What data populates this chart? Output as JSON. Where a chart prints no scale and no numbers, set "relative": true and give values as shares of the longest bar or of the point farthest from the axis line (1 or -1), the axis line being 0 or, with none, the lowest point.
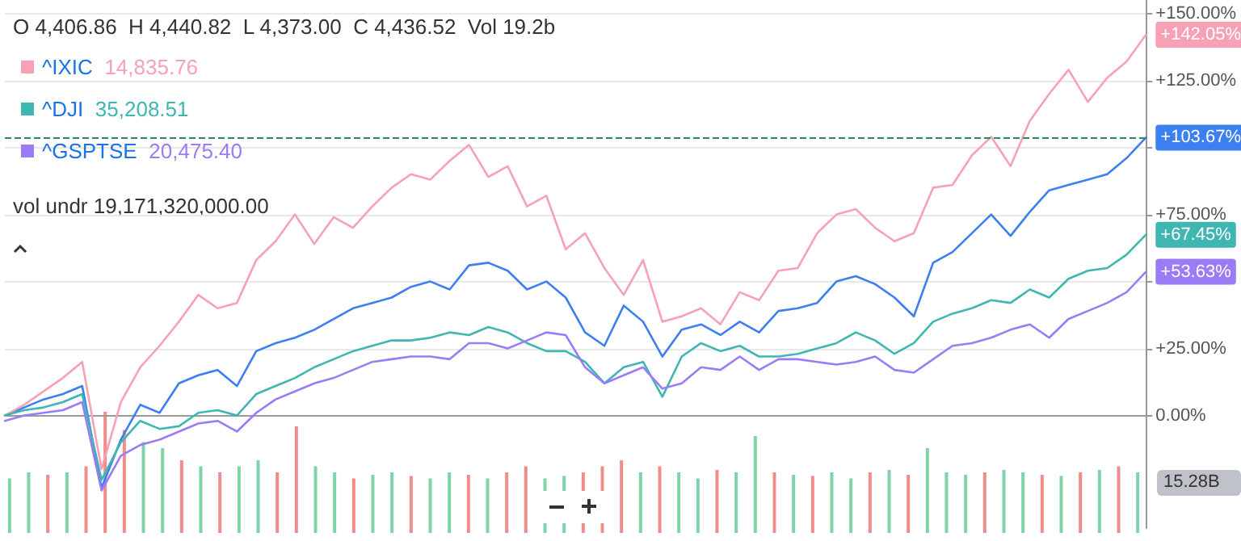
{
  "chart_data": [
    {
      "type": "line",
      "categories": [
        null,
        null,
        null,
        null,
        null,
        null,
        null,
        null,
        null,
        null,
        null,
        null,
        null,
        null,
        null,
        null,
        null,
        null,
        null,
        null,
        null,
        null,
        null,
        null,
        null,
        null,
        null,
        null,
        null,
        null,
        null,
        null,
        null,
        null,
        null,
        null,
        null,
        null,
        null,
        null,
        null,
        null,
        null,
        null,
        null,
        null,
        null,
        null,
        null,
        null,
        null,
        null,
        null,
        null,
        null,
        null,
        null,
        null,
        null,
        null
      ],
      "series": [
        {
          "color": "#3b7ff0",
          "values": [
            0,
            3,
            6,
            8,
            11,
            -27,
            -9,
            4,
            1,
            12,
            15,
            17,
            11,
            24,
            27,
            29,
            32,
            36,
            40,
            42,
            44,
            48,
            50,
            47,
            56,
            57,
            54,
            47,
            50,
            44,
            31,
            26,
            41,
            35,
            22,
            32,
            34,
            30,
            35,
            31,
            39,
            40,
            42,
            50,
            52,
            49,
            44,
            37,
            57,
            61,
            68,
            75,
            67,
            76,
            84,
            86,
            88,
            90,
            96,
            103.67
          ],
          "value_labels": [
            null,
            null,
            null,
            null,
            null,
            null,
            null,
            null,
            null,
            null,
            null,
            null,
            null,
            null,
            null,
            null,
            null,
            null,
            null,
            null,
            null,
            null,
            null,
            null,
            null,
            null,
            null,
            null,
            null,
            null,
            null,
            null,
            null,
            null,
            null,
            null,
            null,
            null,
            null,
            null,
            null,
            null,
            null,
            null,
            null,
            null,
            null,
            null,
            null,
            null,
            null,
            null,
            null,
            null,
            null,
            null,
            null,
            null,
            null,
            "+103.67%"
          ]
        },
        {
          "name": "^IXIC",
          "color": "#f7a1b5",
          "values": [
            0,
            4,
            9,
            14,
            20,
            -20,
            5,
            18,
            26,
            35,
            45,
            40,
            42,
            58,
            65,
            75,
            64,
            74,
            70,
            78,
            85,
            90,
            88,
            95,
            101,
            89,
            93,
            78,
            82,
            62,
            68,
            55,
            45,
            58,
            35,
            37,
            40,
            34,
            46,
            43,
            54,
            55,
            68,
            75,
            77,
            70,
            65,
            68,
            85,
            86,
            97,
            104,
            93,
            110,
            120,
            129,
            117,
            126,
            132,
            142.05
          ],
          "value_labels": [
            null,
            null,
            null,
            null,
            null,
            null,
            null,
            null,
            null,
            null,
            null,
            null,
            null,
            null,
            null,
            null,
            null,
            null,
            null,
            null,
            null,
            null,
            null,
            null,
            null,
            null,
            null,
            null,
            null,
            null,
            null,
            null,
            null,
            null,
            null,
            null,
            null,
            null,
            null,
            null,
            null,
            null,
            null,
            null,
            null,
            null,
            null,
            null,
            null,
            null,
            null,
            null,
            null,
            null,
            null,
            null,
            null,
            null,
            null,
            "+142.05%"
          ]
        },
        {
          "name": "^DJI",
          "color": "#3fb6b2",
          "values": [
            0,
            2,
            3,
            5,
            8,
            -24,
            -10,
            -2,
            -5,
            -4,
            1,
            2,
            0,
            8,
            11,
            14,
            18,
            21,
            24,
            26,
            28,
            28,
            29,
            31,
            30,
            33,
            31,
            27,
            24,
            24,
            20,
            12,
            18,
            20,
            7,
            22,
            27,
            24,
            26,
            22,
            22,
            23,
            25,
            27,
            31,
            28,
            23,
            27,
            35,
            38,
            40,
            43,
            42,
            47,
            44,
            51,
            54,
            55,
            60,
            67.45
          ],
          "value_labels": [
            null,
            null,
            null,
            null,
            null,
            null,
            null,
            null,
            null,
            null,
            null,
            null,
            null,
            null,
            null,
            null,
            null,
            null,
            null,
            null,
            null,
            null,
            null,
            null,
            null,
            null,
            null,
            null,
            null,
            null,
            null,
            null,
            null,
            null,
            null,
            null,
            null,
            null,
            null,
            null,
            null,
            null,
            null,
            null,
            null,
            null,
            null,
            null,
            null,
            null,
            null,
            null,
            null,
            null,
            null,
            null,
            null,
            null,
            null,
            "+67.45%"
          ]
        },
        {
          "name": "^GSPTSE",
          "color": "#9a7cf7",
          "values": [
            -2,
            0,
            1,
            2,
            5,
            -28,
            -15,
            -11,
            -9,
            -6,
            -3,
            -2,
            -6,
            1,
            6,
            9,
            12,
            14,
            17,
            20,
            21,
            22,
            22,
            21,
            27,
            27,
            25,
            28,
            31,
            30,
            18,
            12,
            15,
            18,
            10,
            12,
            18,
            17,
            22,
            17,
            21,
            21,
            20,
            19,
            20,
            22,
            17,
            16,
            21,
            26,
            27,
            29,
            32,
            34,
            29,
            36,
            39,
            42,
            46,
            53.63
          ],
          "value_labels": [
            null,
            null,
            null,
            null,
            null,
            null,
            null,
            null,
            null,
            null,
            null,
            null,
            null,
            null,
            null,
            null,
            null,
            null,
            null,
            null,
            null,
            null,
            null,
            null,
            null,
            null,
            null,
            null,
            null,
            null,
            null,
            null,
            null,
            null,
            null,
            null,
            null,
            null,
            null,
            null,
            null,
            null,
            null,
            null,
            null,
            null,
            null,
            null,
            null,
            null,
            null,
            null,
            null,
            null,
            null,
            null,
            null,
            null,
            null,
            "+53.63%"
          ]
        }
      ],
      "ylim": [
        -42,
        155
      ],
      "yticks": [
        {
          "value": 0,
          "label": "0.00%"
        },
        {
          "value": 25,
          "label": "+25.00%"
        },
        {
          "value": 50,
          "label": null
        },
        {
          "value": 75,
          "label": "+75.00%"
        },
        {
          "value": 100,
          "label": null
        },
        {
          "value": 125,
          "label": "+125.00%"
        },
        {
          "value": 150,
          "label": "+150.00%"
        }
      ],
      "ref_lines": [
        {
          "axis": "y",
          "value": 103.67,
          "color": "#2e8b57",
          "line_style": "dashed"
        }
      ],
      "grid": "y",
      "legend": "top left",
      "marker": "none",
      "annotations": [
        "O 4,406.86  H 4,440.82  L 4,373.00  C 4,436.52  Vol 19.2b",
        "14,835.76",
        "35,208.51",
        "20,475.40",
        "vol undr 19,171,320,000.00"
      ]
    },
    {
      "type": "bar",
      "relative": true,
      "categories": [
        null,
        null,
        null,
        null,
        null,
        null,
        null,
        null,
        null,
        null,
        null,
        null,
        null,
        null,
        null,
        null,
        null,
        null,
        null,
        null,
        null,
        null,
        null,
        null,
        null,
        null,
        null,
        null,
        null,
        null,
        null,
        null,
        null,
        null,
        null,
        null,
        null,
        null,
        null,
        null,
        null,
        null,
        null,
        null,
        null,
        null,
        null,
        null,
        null,
        null,
        null,
        null,
        null,
        null,
        null,
        null,
        null,
        null,
        null,
        null
      ],
      "values": [
        0.45,
        0.5,
        0.48,
        0.5,
        0.55,
        1.0,
        0.85,
        0.75,
        0.7,
        0.6,
        0.55,
        0.5,
        0.55,
        0.6,
        0.5,
        0.88,
        0.55,
        0.5,
        0.45,
        0.48,
        0.5,
        0.47,
        0.45,
        0.5,
        0.48,
        0.45,
        0.5,
        0.55,
        0.45,
        0.47,
        0.5,
        0.55,
        0.6,
        0.5,
        0.55,
        0.5,
        0.45,
        0.52,
        0.5,
        0.8,
        0.5,
        0.48,
        0.47,
        0.5,
        0.45,
        0.5,
        0.52,
        0.48,
        0.7,
        0.5,
        0.48,
        0.5,
        0.52,
        0.5,
        0.48,
        0.47,
        0.5,
        0.52,
        0.55,
        0.5
      ],
      "colors": [
        "#7fd3a8",
        "#7fd3a8",
        "#f08c8c",
        "#7fd3a8",
        "#f08c8c",
        "#f08c8c",
        "#f08c8c",
        "#7fd3a8",
        "#7fd3a8",
        "#f08c8c",
        "#7fd3a8",
        "#f08c8c",
        "#7fd3a8",
        "#7fd3a8",
        "#f08c8c",
        "#f08c8c",
        "#7fd3a8",
        "#7fd3a8",
        "#f08c8c",
        "#7fd3a8",
        "#7fd3a8",
        "#f08c8c",
        "#7fd3a8",
        "#7fd3a8",
        "#f08c8c",
        "#7fd3a8",
        "#f08c8c",
        "#f08c8c",
        "#7fd3a8",
        "#7fd3a8",
        "#f08c8c",
        "#f08c8c",
        "#f08c8c",
        "#7fd3a8",
        "#f08c8c",
        "#7fd3a8",
        "#7fd3a8",
        "#f08c8c",
        "#7fd3a8",
        "#7fd3a8",
        "#f08c8c",
        "#7fd3a8",
        "#f08c8c",
        "#7fd3a8",
        "#7fd3a8",
        "#f08c8c",
        "#7fd3a8",
        "#f08c8c",
        "#7fd3a8",
        "#7fd3a8",
        "#7fd3a8",
        "#f08c8c",
        "#7fd3a8",
        "#7fd3a8",
        "#f08c8c",
        "#7fd3a8",
        "#f08c8c",
        "#7fd3a8",
        "#f08c8c",
        "#7fd3a8"
      ],
      "annotations": [
        "15.28B"
      ]
    }
  ]
}
